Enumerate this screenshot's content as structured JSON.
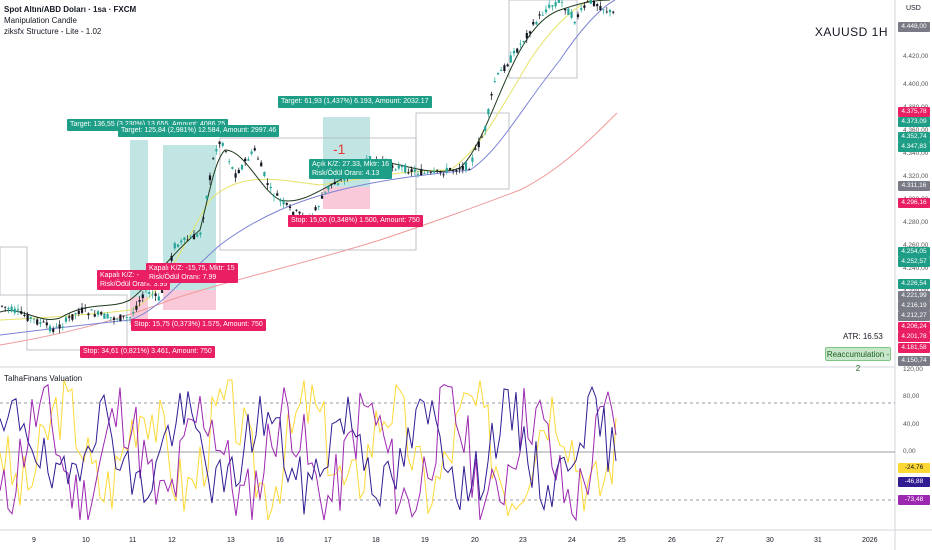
{
  "legend": {
    "symbol_line": "Spot Altın/ABD Doları · 1sa · FXCM",
    "indicator_1": "Manipulation Candle",
    "indicator_2": "ziksfx Structure - Lite - 1.02",
    "oscillator": "TalhaFinans Valuation"
  },
  "symbol_watermark": "XAUUSD   1H",
  "currency": "USD",
  "atr": "ATR: 16.53",
  "badge": "Reaccumulation - 2",
  "minus_label": "-1",
  "trade_labels": {
    "t1": "Target: 136,55 (3,230%) 13.655, Amount: 4086,25",
    "t2": "Target: 125,84 (2,981%) 12.584, Amount: 2997.46",
    "t3": "Target: 61,93 (1,437%) 6.193, Amount: 2032.17",
    "s1": "Stop: 15,00 (0,348%) 1.500, Amount: 750",
    "s2": "Stop: 15,75 (0,373%) 1.575, Amount: 750",
    "s3": "Stop: 34,61 (0,821%) 3.461, Amount: 750",
    "k1a": "Kapalı K/Z: -",
    "k1b": "Risk/Ödül Oranı: 3.95",
    "k2a": "Kapalı K/Z: -15,75, Mktr: 15",
    "k2b": "Risk/Ödül Oranı: 7.99",
    "a1a": "Açık K/Z: 27.33, Mktr: 16",
    "a1b": "Risk/Ödül Oranı: 4.13"
  },
  "price_axis": {
    "ticks": [
      "4.448,00",
      "4.420,00",
      "4.400,00",
      "4.380,00",
      "4.360,00",
      "4.340,00",
      "4.320,00",
      "4.300,00",
      "4.280,00",
      "4.260,00",
      "4.240,00",
      "4.220,00",
      "4.200,00",
      "4.180,00",
      "4.160,00"
    ],
    "labels": [
      {
        "text": "4.375,78",
        "color": "#e91e63"
      },
      {
        "text": "4.373,09",
        "color": "#1e9e86"
      },
      {
        "text": "4.352,74",
        "color": "#1e9e86"
      },
      {
        "text": "4.347,83",
        "color": "#1e9e86"
      },
      {
        "text": "4.311,16",
        "color": "#787b86"
      },
      {
        "text": "4.296,16",
        "color": "#e91e63"
      },
      {
        "text": "4.254,05",
        "color": "#1e9e86"
      },
      {
        "text": "4.252,57",
        "color": "#1e9e86"
      },
      {
        "text": "4.226,54",
        "color": "#1e9e86"
      },
      {
        "text": "4.221,99",
        "color": "#787b86"
      },
      {
        "text": "4.216,19",
        "color": "#787b86"
      },
      {
        "text": "4.212,27",
        "color": "#787b86"
      },
      {
        "text": "4.206,24",
        "color": "#e91e63"
      },
      {
        "text": "4.201,78",
        "color": "#e91e63"
      },
      {
        "text": "4.181,58",
        "color": "#e91e63"
      },
      {
        "text": "4.150,74",
        "color": "#787b86"
      },
      {
        "text": "4.448,00",
        "color": "#787b86"
      }
    ]
  },
  "osc_axis": {
    "ticks": [
      "120,00",
      "80,00",
      "40,00",
      "0,00",
      "-40,00",
      "-80,00"
    ],
    "labels": [
      {
        "text": "-24,76",
        "color": "#fdd835",
        "fg": "#131722"
      },
      {
        "text": "-46,88",
        "color": "#311b92",
        "fg": "#ffffff"
      },
      {
        "text": "-73,48",
        "color": "#9c27b0",
        "fg": "#ffffff"
      }
    ]
  },
  "time_axis": [
    "9",
    "10",
    "11",
    "12",
    "13",
    "16",
    "17",
    "18",
    "19",
    "20",
    "23",
    "24",
    "25",
    "26",
    "27",
    "30",
    "31",
    "2026"
  ],
  "colors": {
    "up": "#26a69a",
    "down": "#131722",
    "ema_fast": "#1e3a1e",
    "ema_yellow": "#e6e26a",
    "ema_blue": "#7b83d6",
    "ema_red": "#ef9a9a",
    "target_zone": "#b2dfdb",
    "stop_zone": "#f8bbd0"
  }
}
